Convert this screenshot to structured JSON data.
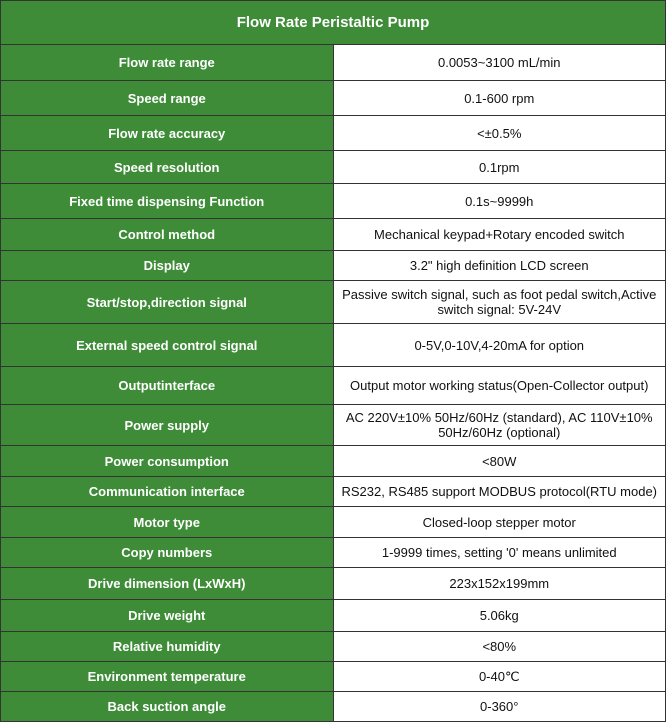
{
  "title": "Flow Rate Peristaltic Pump",
  "colors": {
    "header_bg": "#3e8c38",
    "label_text": "#ffffff"
  },
  "rows": [
    {
      "label": "Flow rate range",
      "value": "0.0053~3100 mL/min"
    },
    {
      "label": "Speed range",
      "value": "0.1-600 rpm"
    },
    {
      "label": "Flow rate accuracy",
      "value": "<±0.5%"
    },
    {
      "label": "Speed resolution",
      "value": "0.1rpm"
    },
    {
      "label": "Fixed time dispensing Function",
      "value": "0.1s~9999h"
    },
    {
      "label": "Control method",
      "value": "Mechanical keypad+Rotary encoded switch"
    },
    {
      "label": "Display",
      "value": "3.2\" high definition LCD screen"
    },
    {
      "label": "Start/stop,direction signal",
      "value": "Passive switch signal, such as foot pedal switch,Active switch signal: 5V-24V"
    },
    {
      "label": "External speed control signal",
      "value": "0-5V,0-10V,4-20mA for option"
    },
    {
      "label": "Outputinterface",
      "value": "Output motor working status(Open-Collector output)"
    },
    {
      "label": "Power supply",
      "value": "AC 220V±10% 50Hz/60Hz (standard), AC 110V±10% 50Hz/60Hz (optional)"
    },
    {
      "label": "Power consumption",
      "value": "<80W"
    },
    {
      "label": "Communication interface",
      "value": "RS232, RS485 support MODBUS protocol(RTU mode)"
    },
    {
      "label": "Motor type",
      "value": "Closed-loop stepper motor"
    },
    {
      "label": "Copy numbers",
      "value": "1-9999 times, setting '0' means unlimited"
    },
    {
      "label": "Drive dimension (LxWxH)",
      "value": "223x152x199mm"
    },
    {
      "label": "Drive weight",
      "value": "5.06kg"
    },
    {
      "label": "Relative humidity",
      "value": "<80%"
    },
    {
      "label": "Environment temperature",
      "value": "0-40℃"
    },
    {
      "label": "Back suction angle",
      "value": "0-360°"
    }
  ]
}
